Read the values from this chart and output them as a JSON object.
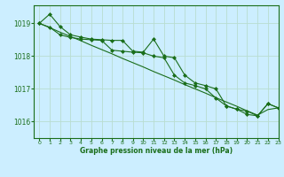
{
  "title": "Graphe pression niveau de la mer (hPa)",
  "background_color": "#cceeff",
  "grid_color": "#b8ddd0",
  "line_color": "#1a6e1a",
  "xlim": [
    -0.5,
    23
  ],
  "ylim": [
    1015.5,
    1019.55
  ],
  "yticks": [
    1016,
    1017,
    1018,
    1019
  ],
  "xticks": [
    0,
    1,
    2,
    3,
    4,
    5,
    6,
    7,
    8,
    9,
    10,
    11,
    12,
    13,
    14,
    15,
    16,
    17,
    18,
    19,
    20,
    21,
    22,
    23
  ],
  "series1": [
    1019.0,
    1019.28,
    1018.9,
    1018.65,
    1018.58,
    1018.52,
    1018.5,
    1018.48,
    1018.48,
    1018.15,
    1018.12,
    1018.52,
    1018.0,
    1017.95,
    1017.42,
    1017.18,
    1017.1,
    1017.0,
    1016.48,
    1016.38,
    1016.32,
    1016.18,
    1016.55,
    1016.42
  ],
  "series2": [
    1019.0,
    1018.88,
    1018.65,
    1018.57,
    1018.52,
    1018.5,
    1018.48,
    1018.18,
    1018.15,
    1018.12,
    1018.1,
    1018.0,
    1017.95,
    1017.42,
    1017.18,
    1017.1,
    1017.0,
    1016.72,
    1016.48,
    1016.38,
    1016.22,
    1016.18,
    1016.55,
    1016.42
  ],
  "trend": [
    1019.0,
    1018.87,
    1018.73,
    1018.6,
    1018.47,
    1018.33,
    1018.2,
    1018.07,
    1017.93,
    1017.8,
    1017.67,
    1017.53,
    1017.4,
    1017.27,
    1017.13,
    1017.0,
    1016.87,
    1016.73,
    1016.6,
    1016.47,
    1016.33,
    1016.2,
    1016.37,
    1016.42
  ]
}
